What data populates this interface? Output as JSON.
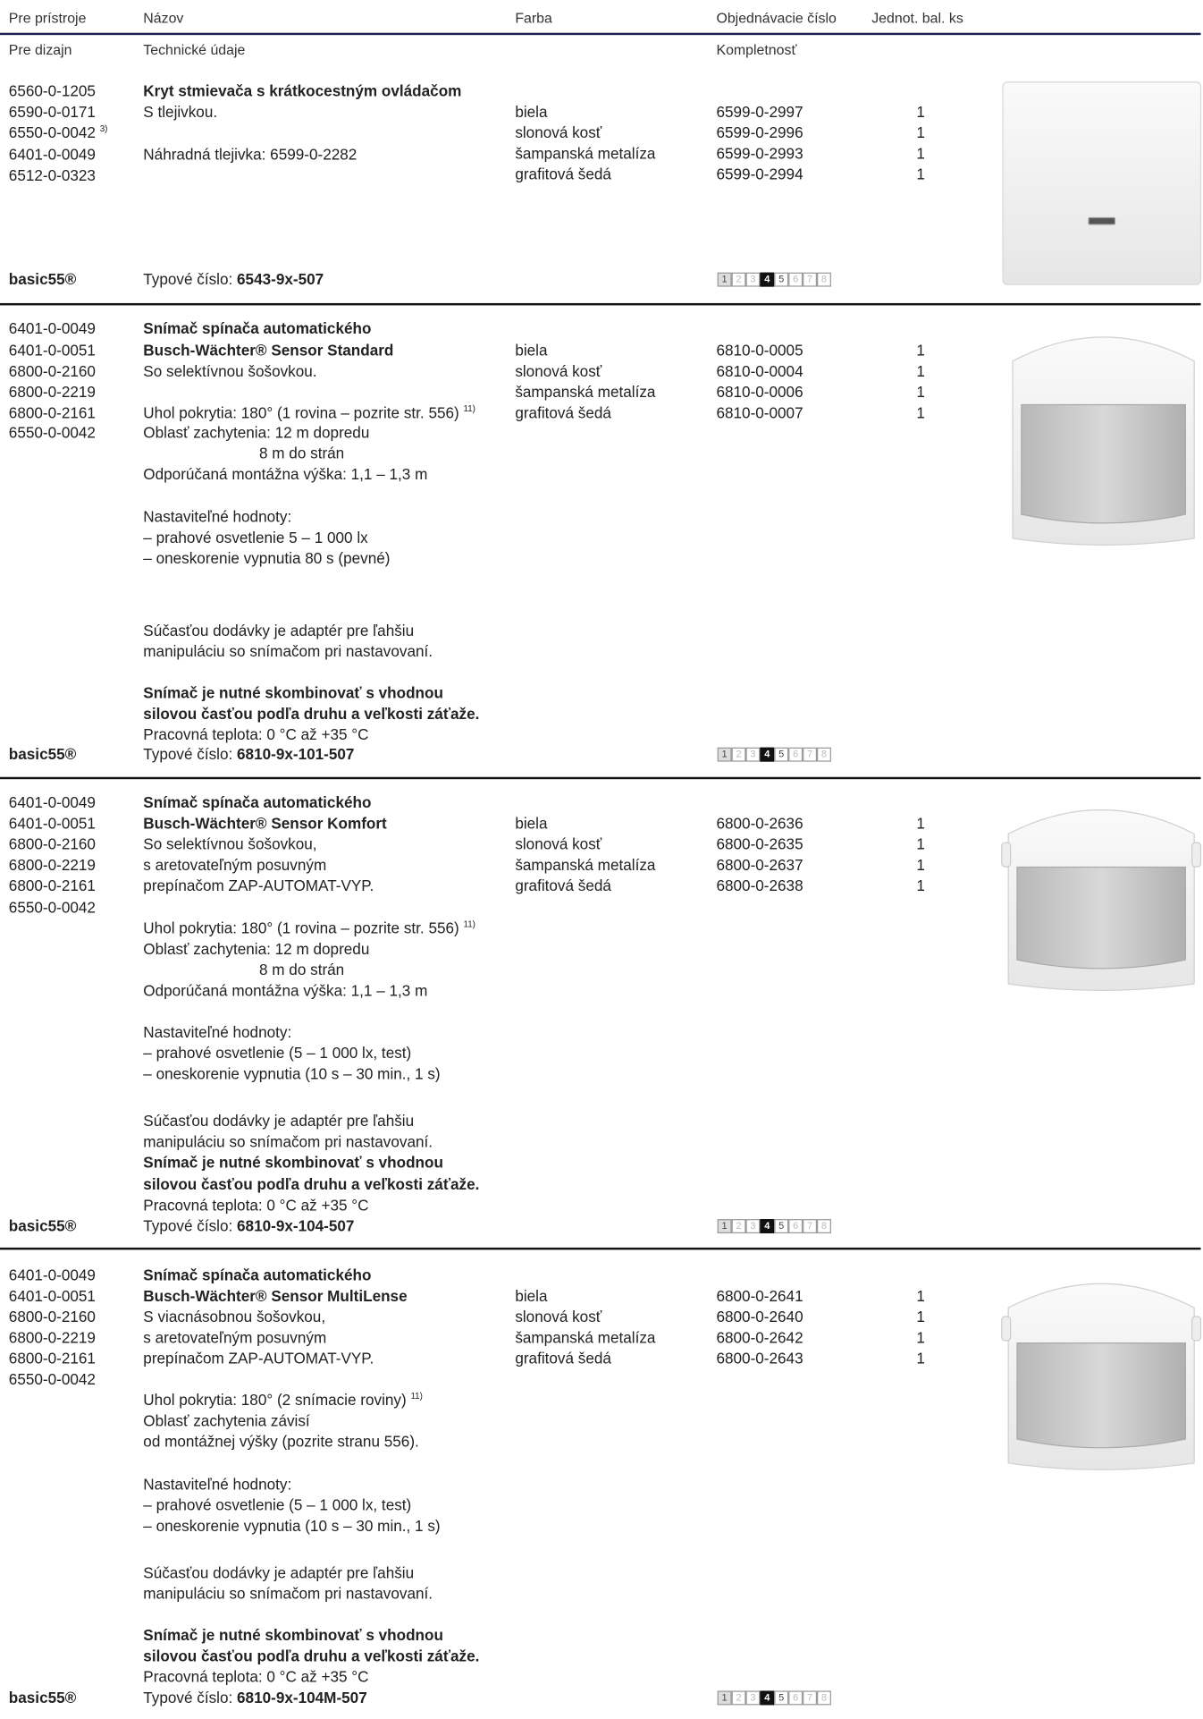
{
  "header": {
    "columns": [
      "Pre prístroje",
      "Názov",
      "Farba",
      "Objednávacie číslo",
      "Jednot. bal. ks"
    ],
    "subcolumns": [
      "Pre dizajn",
      "Technické údaje",
      "Kompletnosť"
    ]
  },
  "products": [
    {
      "devices": [
        "6560-0-1205",
        "6590-0-0171",
        {
          "text": "6550-0-0042",
          "note": "3)"
        },
        "6401-0-0049",
        "6512-0-0323"
      ],
      "details": [
        "Kryt stmievača s krátkocestným ovládačom",
        "S tlejivkou.",
        "Náhradná tlejivka: 6599-0-2282"
      ],
      "colors": [
        "biela",
        "slonová kosť",
        "šampanská metalíza",
        "grafitová šedá"
      ],
      "order_numbers": [
        "6599-0-2997",
        "6599-0-2996",
        "6599-0-2993",
        "6599-0-2994"
      ],
      "quantities": [
        1,
        1,
        1,
        1
      ],
      "brand": "basic55®",
      "type_label": "Typové číslo:",
      "type_number": "6543-9x-507",
      "scale": [
        1,
        2,
        3,
        4,
        5,
        6,
        7,
        8
      ]
    },
    {
      "devices": [
        "6401-0-0049",
        "6401-0-0051",
        "6800-0-2160",
        "6800-0-2219",
        "6800-0-2161",
        "6550-0-0042"
      ],
      "details": [
        "Snímač spínača automatického",
        "Busch-Wächter® Sensor Standard",
        "So selektívnou šošovkou.",
        {
          "text": "Uhol pokrytia: 180° (1 rovina – pozrite str. 556)",
          "note": "11)"
        },
        "Oblasť zachytenia: 12 m dopredu",
        "8 m do strán",
        "Odporúčaná montážna výška: 1,1 – 1,3 m",
        "Nastaviteľné hodnoty:",
        "– prahové osvetlenie 5 – 1 000 lx",
        "– oneskorenie vypnutia 80 s (pevné)",
        "Súčasťou dodávky je adaptér pre ľahšiu",
        "manipuláciu so snímačom pri nastavovaní.",
        "Snímač je nutné skombinovať s vhodnou",
        "silovou časťou podľa druhu a veľkosti záťaže.",
        "Pracovná teplota: 0 °C až +35 °C"
      ],
      "colors": [
        "biela",
        "slonová kosť",
        "šampanská metalíza",
        "grafitová šedá"
      ],
      "order_numbers": [
        "6810-0-0005",
        "6810-0-0004",
        "6810-0-0006",
        "6810-0-0007"
      ],
      "quantities": [
        1,
        1,
        1,
        1
      ],
      "brand": "basic55®",
      "type_label": "Typové číslo:",
      "type_number": "6810-9x-101-507",
      "scale": [
        1,
        2,
        3,
        4,
        5,
        6,
        7,
        8
      ]
    },
    {
      "devices": [
        "6401-0-0049",
        "6401-0-0051",
        "6800-0-2160",
        "6800-0-2219",
        "6800-0-2161",
        "6550-0-0042"
      ],
      "details": [
        "Snímač spínača automatického",
        "Busch-Wächter® Sensor Komfort",
        "So selektívnou šošovkou,",
        "s aretovateľným posuvným",
        "prepínačom ZAP-AUTOMAT-VYP.",
        {
          "text": "Uhol pokrytia: 180° (1 rovina – pozrite str. 556)",
          "note": "11)"
        },
        "Oblasť zachytenia: 12 m dopredu",
        "8 m do strán",
        "Odporúčaná montážna výška: 1,1 – 1,3 m",
        "Nastaviteľné hodnoty:",
        "– prahové osvetlenie (5 – 1 000 lx, test)",
        "– oneskorenie vypnutia (10 s – 30 min., 1 s)",
        "Súčasťou dodávky je adaptér pre ľahšiu",
        "manipuláciu so snímačom pri nastavovaní.",
        "Snímač je nutné skombinovať s vhodnou",
        "silovou časťou podľa druhu a veľkosti záťaže.",
        "Pracovná teplota: 0 °C až +35 °C"
      ],
      "colors": [
        "biela",
        "slonová kosť",
        "šampanská metalíza",
        "grafitová šedá"
      ],
      "order_numbers": [
        "6800-0-2636",
        "6800-0-2635",
        "6800-0-2637",
        "6800-0-2638"
      ],
      "quantities": [
        1,
        1,
        1,
        1
      ],
      "brand": "basic55®",
      "type_label": "Typové číslo:",
      "type_number": "6810-9x-104-507",
      "scale": [
        1,
        2,
        3,
        4,
        5,
        6,
        7,
        8
      ]
    },
    {
      "devices": [
        "6401-0-0049",
        "6401-0-0051",
        "6800-0-2160",
        "6800-0-2219",
        "6800-0-2161",
        "6550-0-0042"
      ],
      "details": [
        "Snímač spínača automatického",
        "Busch-Wächter® Sensor MultiLense",
        "S viacnásobnou šošovkou,",
        "s aretovateľným posuvným",
        "prepínačom ZAP-AUTOMAT-VYP.",
        {
          "text": "Uhol pokrytia: 180° (2 snímacie roviny)",
          "note": "11)"
        },
        "Oblasť zachytenia závisí",
        "od montážnej výšky (pozrite stranu 556).",
        "Nastaviteľné hodnoty:",
        "– prahové osvetlenie (5 – 1 000 lx, test)",
        "– oneskorenie vypnutia (10 s – 30 min., 1 s)",
        "Súčasťou dodávky je adaptér pre ľahšiu",
        "manipuláciu so snímačom pri nastavovaní.",
        "Snímač je nutné skombinovať s vhodnou",
        "silovou časťou podľa druhu a veľkosti záťaže.",
        "Pracovná teplota: 0 °C až +35 °C"
      ],
      "colors": [
        "biela",
        "slonová kosť",
        "šampanská metalíza",
        "grafitová šedá"
      ],
      "order_numbers": [
        "6800-0-2641",
        "6800-0-2640",
        "6800-0-2642",
        "6800-0-2643"
      ],
      "quantities": [
        1,
        1,
        1,
        1
      ],
      "brand": "basic55®",
      "type_label": "Typové číslo:",
      "type_number": "6810-9x-104M-507",
      "scale": [
        1,
        2,
        3,
        4,
        5,
        6,
        7,
        8
      ]
    }
  ]
}
